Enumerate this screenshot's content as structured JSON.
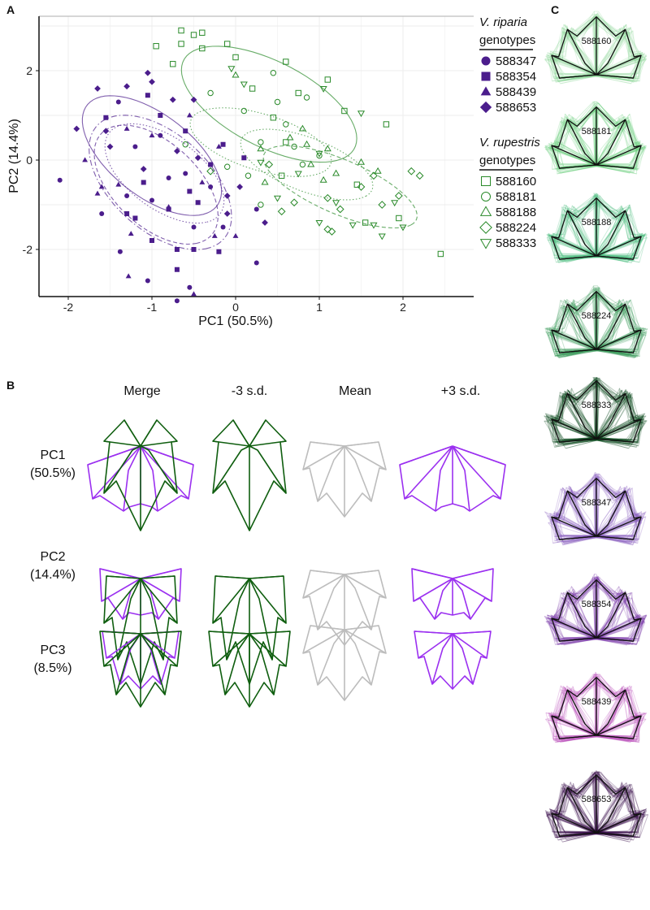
{
  "panels": {
    "a": "A",
    "b": "B",
    "c": "C"
  },
  "chart_data": {
    "type": "scatter",
    "xlabel": "PC1 (50.5%)",
    "ylabel": "PC2 (14.4%)",
    "xlim": [
      -2.35,
      2.85
    ],
    "ylim": [
      -3.05,
      3.2
    ],
    "xticks": [
      "-2",
      "-1",
      "0",
      "1",
      "2"
    ],
    "yticks": [
      "-2",
      "0",
      "2"
    ],
    "grid": true,
    "legend_placement": "right",
    "groups": [
      {
        "species": "V. riparia",
        "title": "genotypes",
        "color": "#4b1d8c",
        "filled": true,
        "series": [
          {
            "name": "588347",
            "marker": "circle",
            "points": [
              [
                -2.1,
                -0.45
              ],
              [
                -1.4,
                1.3
              ],
              [
                -1.6,
                -1.2
              ],
              [
                -1.38,
                -2.05
              ],
              [
                -1.05,
                -2.7
              ],
              [
                -0.7,
                -3.15
              ],
              [
                0.25,
                -2.3
              ],
              [
                -0.55,
                -2.85
              ],
              [
                -0.8,
                -0.4
              ],
              [
                -1.2,
                0.3
              ],
              [
                -0.3,
                -0.6
              ],
              [
                -0.9,
                0.55
              ],
              [
                -1.3,
                -0.8
              ],
              [
                0.25,
                -1.1
              ],
              [
                -0.5,
                -1.5
              ],
              [
                -0.15,
                -1.5
              ],
              [
                -1.0,
                -0.9
              ],
              [
                -0.6,
                -0.3
              ]
            ]
          },
          {
            "name": "588354",
            "marker": "square",
            "points": [
              [
                -1.55,
                0.95
              ],
              [
                -1.05,
                1.45
              ],
              [
                -0.9,
                1.0
              ],
              [
                -0.6,
                0.65
              ],
              [
                -0.15,
                0.35
              ],
              [
                -0.3,
                -0.1
              ],
              [
                -0.55,
                -0.7
              ],
              [
                -1.2,
                -1.3
              ],
              [
                -1.0,
                -1.8
              ],
              [
                -0.7,
                -2.0
              ],
              [
                -0.2,
                -2.05
              ],
              [
                -0.5,
                -2.0
              ],
              [
                -0.7,
                -2.45
              ],
              [
                -1.1,
                -0.5
              ],
              [
                -0.8,
                -1.1
              ],
              [
                0.1,
                0.05
              ],
              [
                -1.3,
                -1.2
              ],
              [
                -0.45,
                -0.95
              ]
            ]
          },
          {
            "name": "588439",
            "marker": "triangle",
            "points": [
              [
                -1.8,
                0.0
              ],
              [
                -1.6,
                -0.6
              ],
              [
                -1.3,
                0.7
              ],
              [
                -0.55,
                1.0
              ],
              [
                -1.25,
                -1.65
              ],
              [
                -1.28,
                -2.6
              ],
              [
                -0.5,
                -3.0
              ],
              [
                -0.25,
                -1.7
              ],
              [
                0.0,
                -1.7
              ],
              [
                -0.4,
                -0.5
              ],
              [
                -1.0,
                0.55
              ],
              [
                -0.8,
                -1.05
              ],
              [
                -1.4,
                -0.55
              ],
              [
                -0.2,
                0.3
              ],
              [
                -1.65,
                -0.75
              ]
            ]
          },
          {
            "name": "588653",
            "marker": "diamond",
            "points": [
              [
                -1.9,
                0.7
              ],
              [
                -1.65,
                1.6
              ],
              [
                -1.3,
                1.65
              ],
              [
                -1.05,
                1.95
              ],
              [
                -1.0,
                1.75
              ],
              [
                -0.75,
                1.35
              ],
              [
                -0.5,
                1.35
              ],
              [
                -1.5,
                0.3
              ],
              [
                -0.45,
                0.05
              ],
              [
                0.05,
                -0.6
              ],
              [
                0.35,
                -1.4
              ],
              [
                -0.1,
                -1.2
              ],
              [
                -1.1,
                -0.2
              ],
              [
                -0.7,
                0.2
              ],
              [
                -0.1,
                -0.8
              ],
              [
                -1.55,
                0.65
              ]
            ]
          }
        ]
      },
      {
        "species": "V. rupestris",
        "title": "genotypes",
        "color": "#2a8a2a",
        "filled": false,
        "series": [
          {
            "name": "588160",
            "marker": "square",
            "points": [
              [
                -0.65,
                2.9
              ],
              [
                -0.5,
                2.8
              ],
              [
                -0.4,
                2.85
              ],
              [
                -0.95,
                2.55
              ],
              [
                -0.65,
                2.6
              ],
              [
                -0.75,
                2.15
              ],
              [
                -0.4,
                2.5
              ],
              [
                -0.1,
                2.6
              ],
              [
                0.0,
                2.3
              ],
              [
                0.6,
                2.2
              ],
              [
                1.1,
                1.8
              ],
              [
                1.8,
                0.8
              ],
              [
                2.45,
                -2.1
              ],
              [
                0.75,
                1.5
              ],
              [
                1.3,
                1.1
              ],
              [
                0.45,
                0.95
              ],
              [
                0.6,
                0.4
              ],
              [
                1.45,
                -0.55
              ],
              [
                1.55,
                -1.4
              ],
              [
                0.55,
                -0.35
              ],
              [
                1.95,
                -1.3
              ],
              [
                0.2,
                1.6
              ]
            ]
          },
          {
            "name": "588181",
            "marker": "circle",
            "points": [
              [
                -0.3,
                1.5
              ],
              [
                0.45,
                1.95
              ],
              [
                0.85,
                1.4
              ],
              [
                0.3,
                0.4
              ],
              [
                0.5,
                1.3
              ],
              [
                0.7,
                0.3
              ],
              [
                0.15,
                -0.35
              ],
              [
                0.3,
                -1.0
              ],
              [
                -0.1,
                -0.15
              ],
              [
                1.0,
                0.1
              ],
              [
                0.8,
                -0.1
              ],
              [
                -0.6,
                0.35
              ],
              [
                0.1,
                1.1
              ],
              [
                0.6,
                0.8
              ]
            ]
          },
          {
            "name": "588188",
            "marker": "triangle",
            "points": [
              [
                0.0,
                1.9
              ],
              [
                0.3,
                0.25
              ],
              [
                0.65,
                0.5
              ],
              [
                0.85,
                0.35
              ],
              [
                1.1,
                0.25
              ],
              [
                1.5,
                -0.05
              ],
              [
                1.7,
                -0.25
              ],
              [
                0.9,
                -0.1
              ],
              [
                1.2,
                -0.3
              ],
              [
                0.35,
                -0.5
              ],
              [
                1.05,
                -0.45
              ],
              [
                0.8,
                0.7
              ]
            ]
          },
          {
            "name": "588224",
            "marker": "diamond",
            "points": [
              [
                -0.3,
                -0.25
              ],
              [
                0.4,
                -0.1
              ],
              [
                0.55,
                -1.15
              ],
              [
                0.7,
                -0.95
              ],
              [
                1.1,
                -0.85
              ],
              [
                1.25,
                -1.1
              ],
              [
                1.65,
                -0.35
              ],
              [
                1.95,
                -0.8
              ],
              [
                2.1,
                -0.25
              ],
              [
                2.2,
                -0.35
              ],
              [
                1.15,
                -1.6
              ],
              [
                1.5,
                -0.6
              ],
              [
                1.75,
                -1.0
              ],
              [
                1.1,
                -1.55
              ]
            ]
          },
          {
            "name": "588333",
            "marker": "triangle-down",
            "points": [
              [
                -0.05,
                2.05
              ],
              [
                0.1,
                1.7
              ],
              [
                1.05,
                1.6
              ],
              [
                1.5,
                1.05
              ],
              [
                0.3,
                -0.05
              ],
              [
                0.75,
                -0.3
              ],
              [
                1.0,
                -1.4
              ],
              [
                1.2,
                -0.95
              ],
              [
                1.4,
                -1.45
              ],
              [
                1.65,
                -1.45
              ],
              [
                1.75,
                -1.7
              ],
              [
                2.0,
                -1.5
              ],
              [
                1.9,
                -0.95
              ],
              [
                1.0,
                0.15
              ],
              [
                0.5,
                -0.85
              ]
            ]
          }
        ]
      }
    ],
    "ellipses": [
      {
        "group": 0,
        "center": [
          -1.0,
          0.1
        ],
        "a": 1.45,
        "b": 0.62,
        "angle": -65,
        "style": "solid"
      },
      {
        "group": 0,
        "center": [
          -0.9,
          -0.5
        ],
        "a": 1.58,
        "b": 0.7,
        "angle": -70,
        "style": "dashdot"
      },
      {
        "group": 0,
        "center": [
          -0.95,
          -0.55
        ],
        "a": 1.4,
        "b": 0.6,
        "angle": -70,
        "style": "dashed"
      },
      {
        "group": 0,
        "center": [
          -0.85,
          -0.3
        ],
        "a": 1.2,
        "b": 0.55,
        "angle": -65,
        "style": "dotted"
      },
      {
        "group": 1,
        "center": [
          0.4,
          1.25
        ],
        "a": 1.5,
        "b": 0.73,
        "angle": -55,
        "style": "solid"
      },
      {
        "group": 1,
        "center": [
          1.25,
          -0.6
        ],
        "a": 1.2,
        "b": 0.5,
        "angle": -45,
        "style": "dashed"
      },
      {
        "group": 1,
        "center": [
          0.85,
          -0.1
        ],
        "a": 1.0,
        "b": 0.5,
        "angle": -45,
        "style": "dotted"
      },
      {
        "group": 1,
        "center": [
          0.3,
          0.4
        ],
        "a": 1.0,
        "b": 0.55,
        "angle": -40,
        "style": "dotted"
      }
    ]
  },
  "shape_panel": {
    "columns": [
      "Merge",
      "-3 s.d.",
      "Mean",
      "+3 s.d."
    ],
    "rows": [
      {
        "label": "PC1",
        "variance": "(50.5%)"
      },
      {
        "label": "PC2",
        "variance": "(14.4%)"
      },
      {
        "label": "PC3",
        "variance": "(8.5%)"
      }
    ],
    "colors": {
      "minus": "#0f5e0f",
      "mean": "#bdbdbd",
      "plus": "#9b30f0"
    }
  },
  "genotype_panel": {
    "leaves": [
      {
        "id": "588160",
        "color": "#8fd89a"
      },
      {
        "id": "588181",
        "color": "#6fcf82"
      },
      {
        "id": "588188",
        "color": "#4fbf80"
      },
      {
        "id": "588224",
        "color": "#3a9a5a"
      },
      {
        "id": "588333",
        "color": "#0f4a20"
      },
      {
        "id": "588347",
        "color": "#8a5cc0"
      },
      {
        "id": "588354",
        "color": "#7a3aa8"
      },
      {
        "id": "588439",
        "color": "#c058c0"
      },
      {
        "id": "588653",
        "color": "#3a0f4a"
      }
    ]
  }
}
